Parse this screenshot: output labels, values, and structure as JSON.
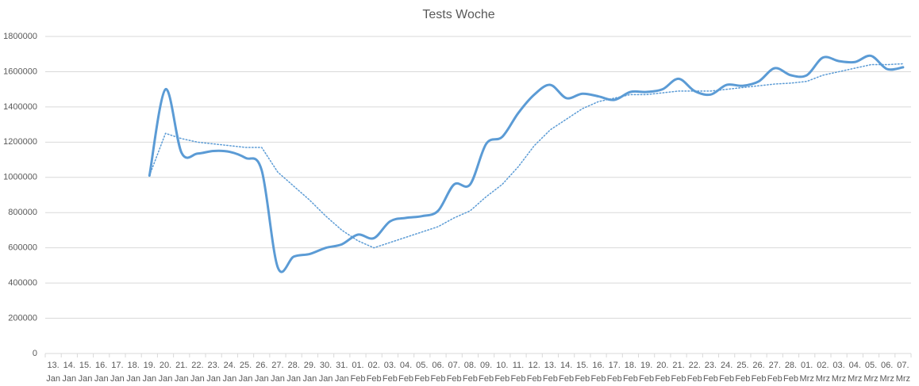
{
  "chart_data": {
    "type": "line",
    "title": "Tests Woche",
    "categories": [
      "13. Jan",
      "14. Jan",
      "15. Jan",
      "16. Jan",
      "17. Jan",
      "18. Jan",
      "19. Jan",
      "20. Jan",
      "21. Jan",
      "22. Jan",
      "23. Jan",
      "24. Jan",
      "25. Jan",
      "26. Jan",
      "27. Jan",
      "28. Jan",
      "29. Jan",
      "30. Jan",
      "31. Jan",
      "01. Feb",
      "02. Feb",
      "03. Feb",
      "04. Feb",
      "05. Feb",
      "06. Feb",
      "07. Feb",
      "08. Feb",
      "09. Feb",
      "10. Feb",
      "11. Feb",
      "12. Feb",
      "13. Feb",
      "14. Feb",
      "15. Feb",
      "16. Feb",
      "17. Feb",
      "18. Feb",
      "19. Feb",
      "20. Feb",
      "21. Feb",
      "22. Feb",
      "23. Feb",
      "24. Feb",
      "25. Feb",
      "26. Feb",
      "27. Feb",
      "28. Feb",
      "01. Mrz",
      "02. Mrz",
      "03. Mrz",
      "04. Mrz",
      "05. Mrz",
      "06. Mrz",
      "07. Mrz"
    ],
    "series": [
      {
        "color": "#5b9bd5",
        "style": "solid",
        "smooth": true,
        "values": [
          null,
          null,
          null,
          null,
          null,
          null,
          1010000,
          1500000,
          1140000,
          1135000,
          1150000,
          1145000,
          1110000,
          1040000,
          490000,
          550000,
          565000,
          600000,
          620000,
          675000,
          655000,
          750000,
          770000,
          780000,
          810000,
          960000,
          960000,
          1190000,
          1230000,
          1365000,
          1470000,
          1525000,
          1450000,
          1475000,
          1460000,
          1440000,
          1485000,
          1485000,
          1500000,
          1560000,
          1490000,
          1470000,
          1525000,
          1520000,
          1545000,
          1620000,
          1580000,
          1580000,
          1680000,
          1660000,
          1655000,
          1690000,
          1615000,
          1625000
        ]
      },
      {
        "color": "#5b9bd5",
        "style": "dotted",
        "smooth": false,
        "values": [
          null,
          null,
          null,
          null,
          null,
          null,
          1010000,
          1250000,
          1220000,
          1200000,
          1190000,
          1180000,
          1170000,
          1170000,
          1030000,
          950000,
          870000,
          780000,
          700000,
          640000,
          600000,
          630000,
          660000,
          690000,
          720000,
          770000,
          810000,
          890000,
          960000,
          1060000,
          1180000,
          1270000,
          1330000,
          1390000,
          1430000,
          1450000,
          1470000,
          1470000,
          1480000,
          1490000,
          1490000,
          1490000,
          1500000,
          1510000,
          1520000,
          1530000,
          1535000,
          1545000,
          1580000,
          1600000,
          1620000,
          1640000,
          1640000,
          1645000
        ]
      }
    ],
    "ylim": [
      0,
      1800000
    ],
    "yticks": [
      0,
      200000,
      400000,
      600000,
      800000,
      1000000,
      1200000,
      1400000,
      1600000,
      1800000
    ],
    "grid": true
  }
}
